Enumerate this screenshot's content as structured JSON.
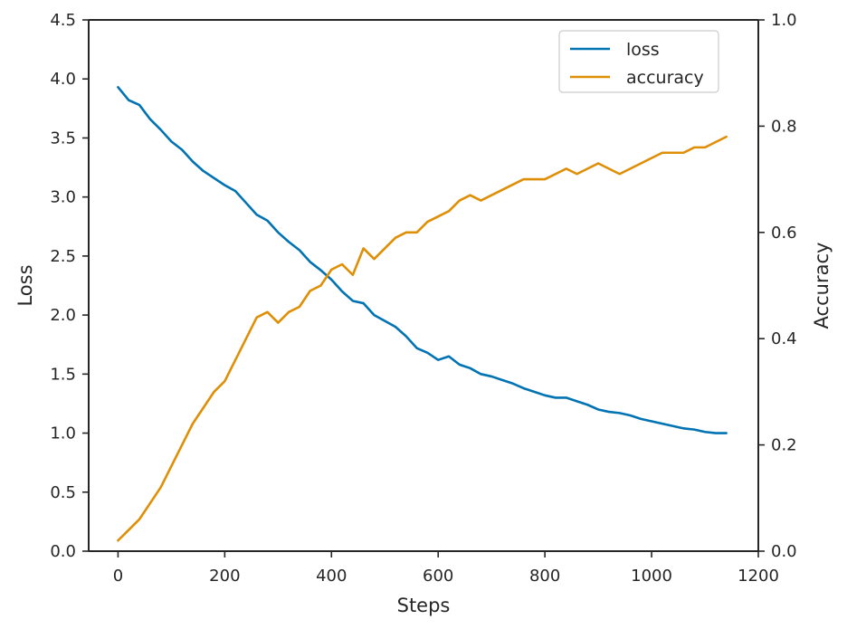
{
  "chart_data": {
    "type": "line",
    "xlabel": "Steps",
    "ylabel_left": "Loss",
    "ylabel_right": "Accuracy",
    "xlim": [
      -55,
      1200
    ],
    "ylim_left": [
      0,
      4.5
    ],
    "ylim_right": [
      0,
      1.0
    ],
    "x_ticks": [
      0,
      200,
      400,
      600,
      800,
      1000,
      1200
    ],
    "y_ticks_left": [
      0.0,
      0.5,
      1.0,
      1.5,
      2.0,
      2.5,
      3.0,
      3.5,
      4.0,
      4.5
    ],
    "y_ticks_right": [
      0.0,
      0.2,
      0.4,
      0.6,
      0.8,
      1.0
    ],
    "legend_position": "top-right",
    "grid": false,
    "colors": {
      "loss": "#0173b2",
      "accuracy": "#de8f05",
      "axis": "#262626"
    },
    "series": [
      {
        "name": "loss",
        "axis": "left",
        "x": [
          0,
          20,
          40,
          60,
          80,
          100,
          120,
          140,
          160,
          180,
          200,
          220,
          240,
          260,
          280,
          300,
          320,
          340,
          360,
          380,
          400,
          420,
          440,
          460,
          480,
          500,
          520,
          540,
          560,
          580,
          600,
          620,
          640,
          660,
          680,
          700,
          720,
          740,
          760,
          780,
          800,
          820,
          840,
          860,
          880,
          900,
          920,
          940,
          960,
          980,
          1000,
          1020,
          1040,
          1060,
          1080,
          1100,
          1120,
          1140
        ],
        "values": [
          3.93,
          3.82,
          3.78,
          3.66,
          3.57,
          3.47,
          3.4,
          3.3,
          3.22,
          3.16,
          3.1,
          3.05,
          2.95,
          2.85,
          2.8,
          2.7,
          2.62,
          2.55,
          2.45,
          2.38,
          2.3,
          2.2,
          2.12,
          2.1,
          2.0,
          1.95,
          1.9,
          1.82,
          1.72,
          1.68,
          1.62,
          1.65,
          1.58,
          1.55,
          1.5,
          1.48,
          1.45,
          1.42,
          1.38,
          1.35,
          1.32,
          1.3,
          1.3,
          1.27,
          1.24,
          1.2,
          1.18,
          1.17,
          1.15,
          1.12,
          1.1,
          1.08,
          1.06,
          1.04,
          1.03,
          1.01,
          1.0,
          1.0
        ]
      },
      {
        "name": "accuracy",
        "axis": "right",
        "x": [
          0,
          20,
          40,
          60,
          80,
          100,
          120,
          140,
          160,
          180,
          200,
          220,
          240,
          260,
          280,
          300,
          320,
          340,
          360,
          380,
          400,
          420,
          440,
          460,
          480,
          500,
          520,
          540,
          560,
          580,
          600,
          620,
          640,
          660,
          680,
          700,
          720,
          740,
          760,
          780,
          800,
          820,
          840,
          860,
          880,
          900,
          920,
          940,
          960,
          980,
          1000,
          1020,
          1040,
          1060,
          1080,
          1100,
          1120,
          1140
        ],
        "values": [
          0.02,
          0.04,
          0.06,
          0.09,
          0.12,
          0.16,
          0.2,
          0.24,
          0.27,
          0.3,
          0.32,
          0.36,
          0.4,
          0.44,
          0.45,
          0.43,
          0.45,
          0.46,
          0.49,
          0.5,
          0.53,
          0.54,
          0.52,
          0.57,
          0.55,
          0.57,
          0.59,
          0.6,
          0.6,
          0.62,
          0.63,
          0.64,
          0.66,
          0.67,
          0.66,
          0.67,
          0.68,
          0.69,
          0.7,
          0.7,
          0.7,
          0.71,
          0.72,
          0.71,
          0.72,
          0.73,
          0.72,
          0.71,
          0.72,
          0.73,
          0.74,
          0.75,
          0.75,
          0.75,
          0.76,
          0.76,
          0.77,
          0.78
        ]
      }
    ]
  }
}
